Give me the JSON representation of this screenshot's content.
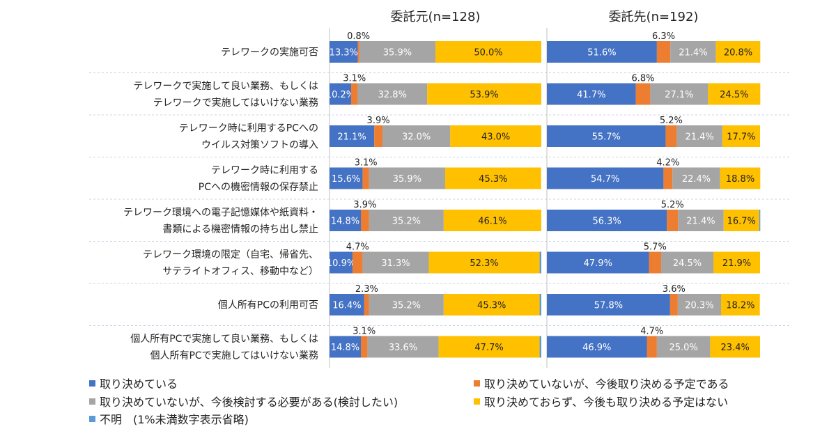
{
  "chart_data": {
    "type": "bar",
    "stacked": true,
    "orientation": "horizontal",
    "panels": [
      {
        "title": "委託元(n=128)"
      },
      {
        "title": "委託先(n=192)"
      }
    ],
    "categories": [
      [
        "テレワークの実施可否"
      ],
      [
        "テレワークで実施して良い業務、もしくは",
        "テレワークで実施してはいけない業務"
      ],
      [
        "テレワーク時に利用するPCへの",
        "ウイルス対策ソフトの導入"
      ],
      [
        "テレワーク時に利用する",
        "PCへの機密情報の保存禁止"
      ],
      [
        "テレワーク環境への電子記憶媒体や紙資料・",
        "書類による機密情報の持ち出し禁止"
      ],
      [
        "テレワーク環境の限定（自宅、帰省先、",
        "サテライトオフィス、移動中など）"
      ],
      [
        "個人所有PCの利用可否"
      ],
      [
        "個人所有PCで実施して良い業務、もしくは",
        "個人所有PCで実施してはいけない業務"
      ]
    ],
    "series": [
      {
        "name": "取り決めている",
        "color": "#4472C4"
      },
      {
        "name": "取り決めていないが、今後取り決める予定である",
        "color": "#ED7D31"
      },
      {
        "name": "取り決めていないが、今後検討する必要がある(検討したい)",
        "color": "#A5A5A5"
      },
      {
        "name": "取り決めておらず、今後も取り決める予定はない",
        "color": "#FFC000"
      },
      {
        "name": "不明　(1%未満数字表示省略)",
        "color": "#5B9BD5"
      }
    ],
    "values": [
      [
        [
          13.3,
          0.8,
          35.9,
          50.0,
          0.0
        ],
        [
          10.2,
          3.1,
          32.8,
          53.9,
          0.0
        ],
        [
          21.1,
          3.9,
          32.0,
          43.0,
          0.0
        ],
        [
          15.6,
          3.1,
          35.9,
          45.3,
          0.0
        ],
        [
          14.8,
          3.9,
          35.2,
          46.1,
          0.0
        ],
        [
          10.9,
          4.7,
          31.3,
          52.3,
          0.8
        ],
        [
          16.4,
          2.3,
          35.2,
          45.3,
          0.8
        ],
        [
          14.8,
          3.1,
          33.6,
          47.7,
          0.8
        ]
      ],
      [
        [
          51.6,
          6.3,
          21.4,
          20.8,
          0.0
        ],
        [
          41.7,
          6.8,
          27.1,
          24.5,
          0.0
        ],
        [
          55.7,
          5.2,
          21.4,
          17.7,
          0.0
        ],
        [
          54.7,
          4.2,
          22.4,
          18.8,
          0.0
        ],
        [
          56.3,
          5.2,
          21.4,
          16.7,
          0.5
        ],
        [
          47.9,
          5.7,
          24.5,
          21.9,
          0.0
        ],
        [
          57.8,
          3.6,
          20.3,
          18.2,
          0.0
        ],
        [
          46.9,
          4.7,
          25.0,
          23.4,
          0.0
        ]
      ]
    ],
    "labels": [
      [
        [
          "13.3%",
          "0.8%",
          "35.9%",
          "50.0%",
          ""
        ],
        [
          "10.2%",
          "3.1%",
          "32.8%",
          "53.9%",
          ""
        ],
        [
          "21.1%",
          "3.9%",
          "32.0%",
          "43.0%",
          ""
        ],
        [
          "15.6%",
          "3.1%",
          "35.9%",
          "45.3%",
          ""
        ],
        [
          "14.8%",
          "3.9%",
          "35.2%",
          "46.1%",
          ""
        ],
        [
          "10.9%",
          "4.7%",
          "31.3%",
          "52.3%",
          ""
        ],
        [
          "16.4%",
          "2.3%",
          "35.2%",
          "45.3%",
          ""
        ],
        [
          "14.8%",
          "3.1%",
          "33.6%",
          "47.7%",
          ""
        ]
      ],
      [
        [
          "51.6%",
          "6.3%",
          "21.4%",
          "20.8%",
          ""
        ],
        [
          "41.7%",
          "6.8%",
          "27.1%",
          "24.5%",
          ""
        ],
        [
          "55.7%",
          "5.2%",
          "21.4%",
          "17.7%",
          ""
        ],
        [
          "54.7%",
          "4.2%",
          "22.4%",
          "18.8%",
          ""
        ],
        [
          "56.3%",
          "5.2%",
          "21.4%",
          "16.7%",
          ""
        ],
        [
          "47.9%",
          "5.7%",
          "24.5%",
          "21.9%",
          ""
        ],
        [
          "57.8%",
          "3.6%",
          "20.3%",
          "18.2%",
          ""
        ],
        [
          "46.9%",
          "4.7%",
          "25.0%",
          "23.4%",
          ""
        ]
      ]
    ],
    "xlim": [
      0,
      100
    ],
    "legend_position": "bottom"
  }
}
